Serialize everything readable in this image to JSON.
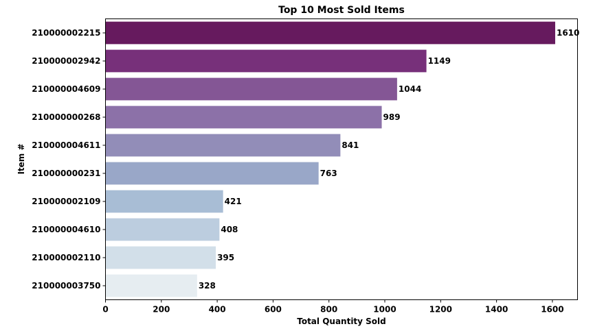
{
  "chart_data": {
    "type": "bar",
    "orientation": "horizontal",
    "title": "Top 10 Most Sold Items",
    "xlabel": "Total Quantity Sold",
    "ylabel": "Item #",
    "xlim": [
      0,
      1690
    ],
    "xticks": [
      0,
      200,
      400,
      600,
      800,
      1000,
      1200,
      1400,
      1600
    ],
    "grid": false,
    "categories": [
      "210000002215",
      "210000002942",
      "210000004609",
      "210000000268",
      "210000004611",
      "210000000231",
      "210000002109",
      "210000004610",
      "210000002110",
      "210000003750"
    ],
    "values": [
      1610,
      1149,
      1044,
      989,
      841,
      763,
      421,
      408,
      395,
      328
    ],
    "colors": [
      "#661a5e",
      "#77307a",
      "#845695",
      "#8c71a8",
      "#928db8",
      "#99a7c8",
      "#a8bdd5",
      "#bccddf",
      "#d2dfe9",
      "#e6edf1"
    ]
  }
}
